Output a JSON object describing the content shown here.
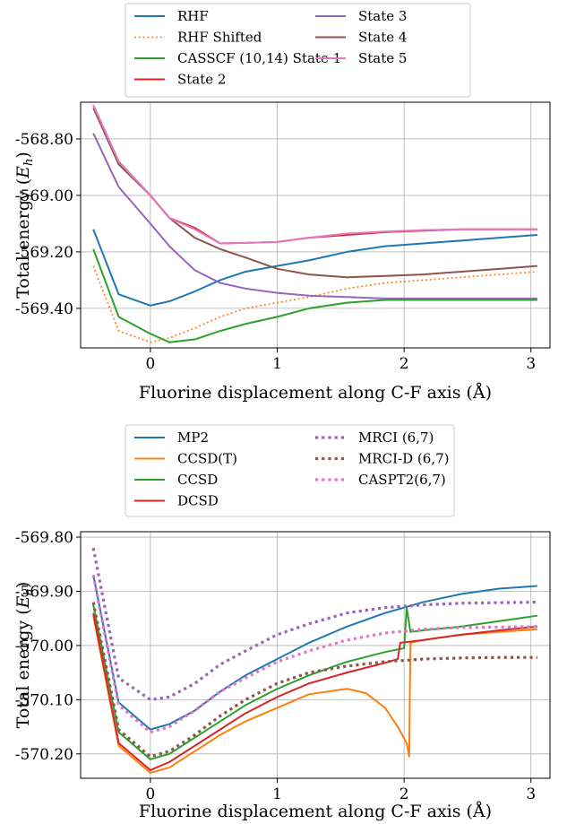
{
  "chart_data": [
    {
      "type": "line",
      "title": "",
      "xlabel": "Fluorine displacement along C-F axis (Å)",
      "ylabel": "Total energy (E_h)",
      "ylabel_text": "Total energy (",
      "ylabel_sym": "E",
      "ylabel_sub": "h",
      "ylabel_close": ")",
      "xlim": [
        -0.55,
        3.15
      ],
      "ylim": [
        -569.54,
        -568.67
      ],
      "xticks": [
        0,
        1,
        2,
        3
      ],
      "xtick_labels": [
        "0",
        "1",
        "2",
        "3"
      ],
      "yticks": [
        -568.8,
        -569.0,
        -569.2,
        -569.4
      ],
      "ytick_labels": [
        "-568.80",
        "-569.00",
        "-569.20",
        "-569.40"
      ],
      "grid": true,
      "legend_position": "top-center-outside",
      "legend_columns": 2,
      "series": [
        {
          "name": "RHF",
          "color": "#1f77b4",
          "style": "solid",
          "x": [
            -0.45,
            -0.25,
            0.0,
            0.15,
            0.35,
            0.55,
            0.75,
            1.0,
            1.25,
            1.55,
            1.85,
            2.15,
            2.45,
            2.75,
            3.05
          ],
          "y": [
            -569.12,
            -569.35,
            -569.39,
            -569.375,
            -569.34,
            -569.3,
            -569.27,
            -569.25,
            -569.23,
            -569.2,
            -569.18,
            -569.17,
            -569.16,
            -569.15,
            -569.14
          ]
        },
        {
          "name": "RHF Shifted",
          "color": "#ff7f0e",
          "style": "dotted",
          "x": [
            -0.45,
            -0.25,
            0.0,
            0.15,
            0.35,
            0.55,
            0.75,
            1.0,
            1.25,
            1.55,
            1.85,
            2.15,
            2.45,
            2.75,
            3.05
          ],
          "y": [
            -569.25,
            -569.48,
            -569.52,
            -569.505,
            -569.47,
            -569.43,
            -569.4,
            -569.38,
            -569.36,
            -569.33,
            -569.31,
            -569.3,
            -569.29,
            -569.28,
            -569.27
          ]
        },
        {
          "name": "CASSCF (10,14) State 1",
          "color": "#2ca02c",
          "style": "solid",
          "x": [
            -0.45,
            -0.25,
            0.0,
            0.15,
            0.35,
            0.55,
            0.75,
            1.0,
            1.25,
            1.55,
            1.85,
            2.15,
            2.45,
            2.75,
            3.05
          ],
          "y": [
            -569.19,
            -569.43,
            -569.49,
            -569.52,
            -569.51,
            -569.48,
            -569.455,
            -569.43,
            -569.4,
            -569.38,
            -569.37,
            -569.37,
            -569.37,
            -569.37,
            -569.37
          ]
        },
        {
          "name": "State 2",
          "color": "#d62728",
          "style": "solid",
          "x": [
            -0.45,
            -0.25,
            0.0,
            0.15,
            0.35,
            0.55,
            0.75,
            1.0,
            1.25,
            1.55,
            1.85,
            2.15,
            2.45,
            2.75,
            3.05
          ],
          "y": [
            -568.68,
            -568.88,
            -569.0,
            -569.08,
            -569.115,
            -569.17,
            -569.168,
            -569.165,
            -569.15,
            -569.14,
            -569.13,
            -569.125,
            -569.12,
            -569.12,
            -569.12
          ]
        },
        {
          "name": "State 3",
          "color": "#9467bd",
          "style": "solid",
          "x": [
            -0.45,
            -0.25,
            0.0,
            0.15,
            0.35,
            0.55,
            0.75,
            1.0,
            1.25,
            1.55,
            1.85,
            2.15,
            2.45,
            2.75,
            3.05
          ],
          "y": [
            -568.78,
            -568.97,
            -569.1,
            -569.18,
            -569.265,
            -569.31,
            -569.33,
            -569.345,
            -569.355,
            -569.36,
            -569.365,
            -569.365,
            -569.365,
            -569.365,
            -569.365
          ]
        },
        {
          "name": "State 4",
          "color": "#8c564b",
          "style": "solid",
          "x": [
            -0.45,
            -0.25,
            0.0,
            0.15,
            0.35,
            0.55,
            0.75,
            1.0,
            1.25,
            1.55,
            1.85,
            2.15,
            2.45,
            2.75,
            3.05
          ],
          "y": [
            -568.69,
            -568.89,
            -569.0,
            -569.08,
            -569.15,
            -569.19,
            -569.22,
            -569.26,
            -569.28,
            -569.29,
            -569.285,
            -569.28,
            -569.27,
            -569.26,
            -569.25
          ]
        },
        {
          "name": "State 5",
          "color": "#e377c2",
          "style": "solid",
          "x": [
            -0.45,
            -0.25,
            0.0,
            0.15,
            0.35,
            0.55,
            0.75,
            1.0,
            1.25,
            1.55,
            1.85,
            2.15,
            2.45,
            2.75,
            3.05
          ],
          "y": [
            -568.68,
            -568.88,
            -569.0,
            -569.08,
            -569.12,
            -569.17,
            -569.168,
            -569.165,
            -569.15,
            -569.135,
            -569.128,
            -569.123,
            -569.12,
            -569.12,
            -569.12
          ]
        }
      ]
    },
    {
      "type": "line",
      "title": "",
      "xlabel": "Fluorine displacement along C-F axis (Å)",
      "ylabel": "Total energy (E_h)",
      "ylabel_text": "Total energy (",
      "ylabel_sym": "E",
      "ylabel_sub": "h",
      "ylabel_close": ")",
      "xlim": [
        -0.55,
        3.15
      ],
      "ylim": [
        -570.245,
        -569.79
      ],
      "xticks": [
        0,
        1,
        2,
        3
      ],
      "xtick_labels": [
        "0",
        "1",
        "2",
        "3"
      ],
      "yticks": [
        -569.8,
        -569.9,
        -570.0,
        -570.1,
        -570.2
      ],
      "ytick_labels": [
        "-569.80",
        "-569.90",
        "-570.00",
        "-570.10",
        "-570.20"
      ],
      "grid": true,
      "legend_position": "top-center-outside",
      "legend_columns": 2,
      "series": [
        {
          "name": "MP2",
          "color": "#1f77b4",
          "style": "solid",
          "x": [
            -0.45,
            -0.25,
            0.0,
            0.15,
            0.35,
            0.55,
            0.75,
            1.0,
            1.25,
            1.55,
            1.85,
            2.15,
            2.45,
            2.75,
            3.05
          ],
          "y": [
            -569.87,
            -570.105,
            -570.155,
            -570.145,
            -570.12,
            -570.085,
            -570.055,
            -570.025,
            -569.995,
            -569.965,
            -569.94,
            -569.92,
            -569.905,
            -569.895,
            -569.89
          ]
        },
        {
          "name": "CCSD(T)",
          "color": "#ff7f0e",
          "style": "solid",
          "x": [
            -0.45,
            -0.25,
            0.0,
            0.15,
            0.35,
            0.55,
            0.75,
            1.0,
            1.25,
            1.55,
            1.7,
            1.85,
            1.95,
            2.02,
            2.04,
            2.05,
            2.15,
            2.45,
            2.75,
            3.05
          ],
          "y": [
            -569.945,
            -570.185,
            -570.235,
            -570.225,
            -570.195,
            -570.165,
            -570.14,
            -570.115,
            -570.09,
            -570.08,
            -570.088,
            -570.115,
            -570.15,
            -570.18,
            -570.205,
            -569.995,
            -569.99,
            -569.98,
            -569.975,
            -569.97
          ]
        },
        {
          "name": "CCSD",
          "color": "#2ca02c",
          "style": "solid",
          "x": [
            -0.45,
            -0.25,
            0.0,
            0.15,
            0.35,
            0.55,
            0.75,
            1.0,
            1.25,
            1.55,
            1.85,
            2.0,
            2.02,
            2.05,
            2.15,
            2.45,
            2.75,
            3.05
          ],
          "y": [
            -569.925,
            -570.16,
            -570.21,
            -570.2,
            -570.17,
            -570.14,
            -570.11,
            -570.08,
            -570.055,
            -570.03,
            -570.012,
            -570.005,
            -569.93,
            -569.975,
            -569.972,
            -569.965,
            -569.955,
            -569.945
          ]
        },
        {
          "name": "DCSD",
          "color": "#d62728",
          "style": "solid",
          "x": [
            -0.45,
            -0.25,
            0.0,
            0.15,
            0.35,
            0.55,
            0.75,
            1.0,
            1.25,
            1.55,
            1.85,
            1.95,
            1.97,
            2.15,
            2.45,
            2.75,
            3.05
          ],
          "y": [
            -569.94,
            -570.18,
            -570.23,
            -570.215,
            -570.185,
            -570.155,
            -570.125,
            -570.095,
            -570.07,
            -570.05,
            -570.032,
            -570.025,
            -569.995,
            -569.99,
            -569.98,
            -569.972,
            -569.965
          ]
        },
        {
          "name": "MRCI (6,7)",
          "color": "#9467bd",
          "style": "dotted",
          "x": [
            -0.45,
            -0.25,
            0.0,
            0.15,
            0.35,
            0.55,
            0.75,
            1.0,
            1.25,
            1.55,
            1.85,
            2.15,
            2.45,
            2.75,
            3.05
          ],
          "y": [
            -569.82,
            -570.06,
            -570.1,
            -570.095,
            -570.07,
            -570.035,
            -570.01,
            -569.98,
            -569.96,
            -569.94,
            -569.93,
            -569.925,
            -569.922,
            -569.921,
            -569.92
          ]
        },
        {
          "name": "MRCI-D (6,7)",
          "color": "#8c564b",
          "style": "dotted",
          "x": [
            -0.45,
            -0.25,
            0.0,
            0.15,
            0.35,
            0.55,
            0.75,
            1.0,
            1.25,
            1.55,
            1.85,
            2.15,
            2.45,
            2.75,
            3.05
          ],
          "y": [
            -569.92,
            -570.155,
            -570.205,
            -570.195,
            -570.165,
            -570.13,
            -570.1,
            -570.07,
            -570.05,
            -570.038,
            -570.03,
            -570.025,
            -570.023,
            -570.022,
            -570.022
          ]
        },
        {
          "name": "CASPT2(6,7)",
          "color": "#e377c2",
          "style": "dotted",
          "x": [
            -0.45,
            -0.25,
            0.0,
            0.15,
            0.35,
            0.55,
            0.75,
            1.0,
            1.25,
            1.55,
            1.85,
            2.15,
            2.45,
            2.75,
            3.05
          ],
          "y": [
            -569.87,
            -570.11,
            -570.16,
            -570.15,
            -570.12,
            -570.085,
            -570.06,
            -570.03,
            -570.01,
            -569.99,
            -569.977,
            -569.97,
            -569.967,
            -569.966,
            -569.965
          ]
        }
      ]
    }
  ]
}
